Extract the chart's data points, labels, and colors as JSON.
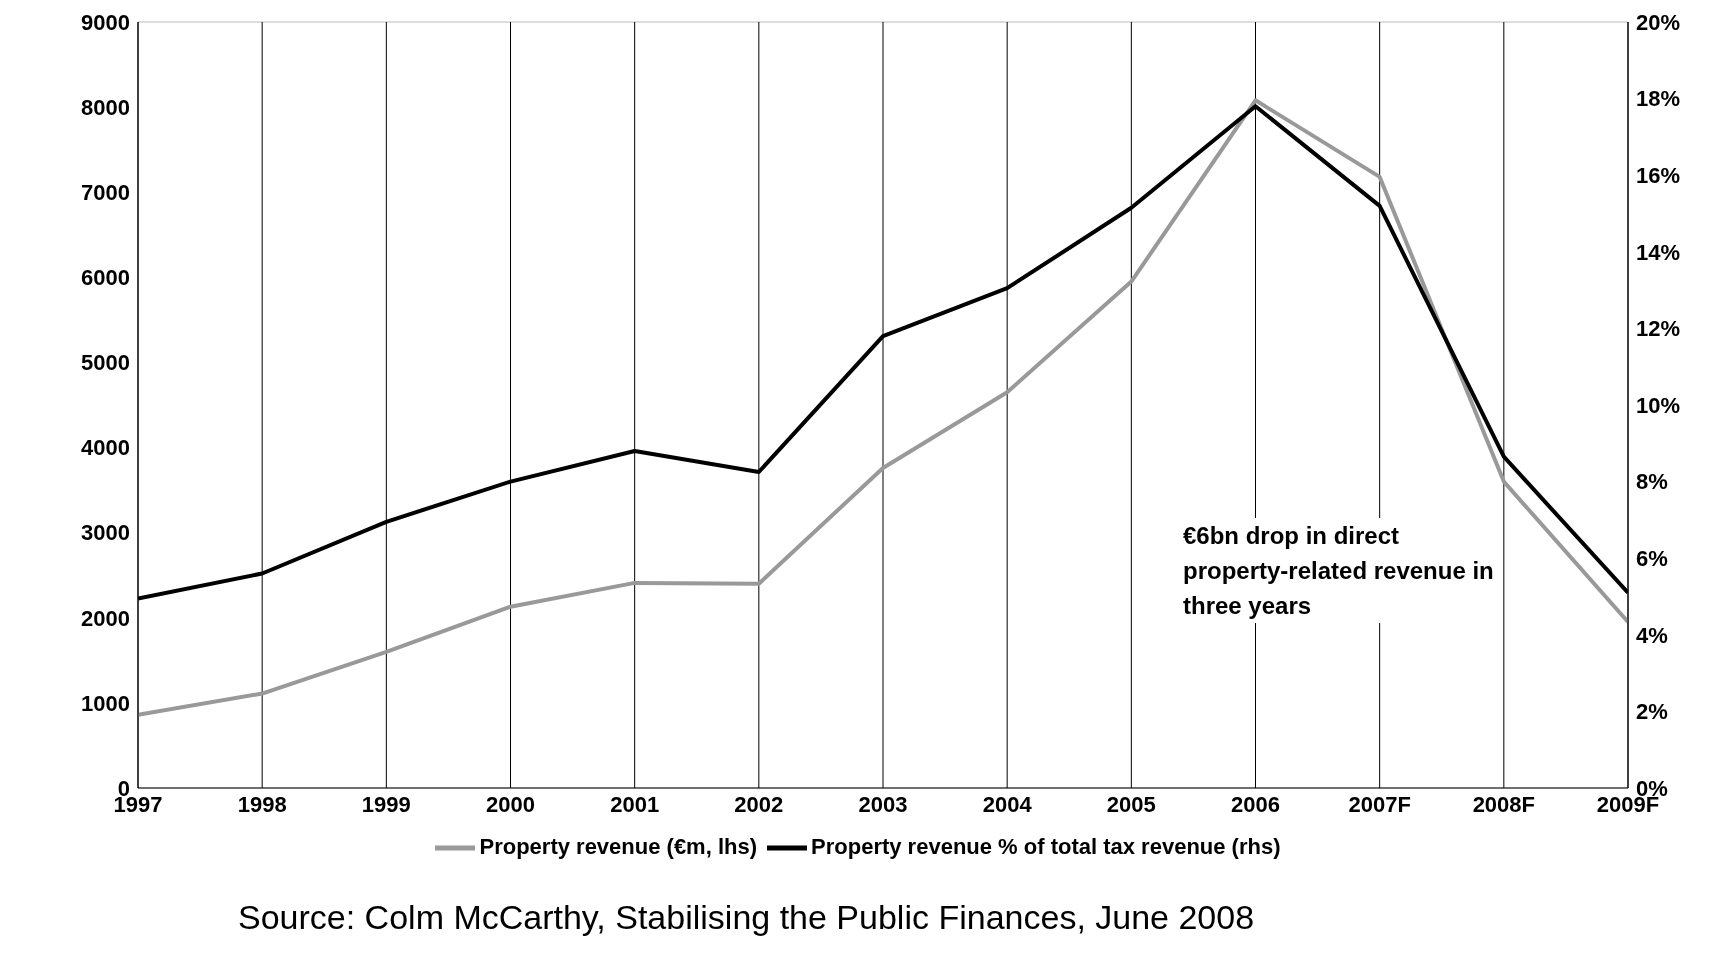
{
  "chart_data": {
    "type": "line",
    "categories": [
      "1997",
      "1998",
      "1999",
      "2000",
      "2001",
      "2002",
      "2003",
      "2004",
      "2005",
      "2006",
      "2007F",
      "2008F",
      "2009F"
    ],
    "series": [
      {
        "name": "Property revenue (€m, lhs)",
        "color": "#999999",
        "values": [
          860,
          1110,
          1600,
          2130,
          2410,
          2400,
          3760,
          4650,
          5950,
          8080,
          7180,
          3600,
          1950
        ]
      },
      {
        "name": "Property revenue % of total tax revenue (rhs)",
        "color": "#000000",
        "axis": "y2",
        "values": [
          4.95,
          5.6,
          6.95,
          8.0,
          8.8,
          8.25,
          11.8,
          13.05,
          15.15,
          17.8,
          15.2,
          8.65,
          5.1
        ]
      }
    ],
    "ylim": [
      0,
      9000
    ],
    "yticks": [
      0,
      1000,
      2000,
      3000,
      4000,
      5000,
      6000,
      7000,
      8000,
      9000
    ],
    "y2lim": [
      0,
      20
    ],
    "y2ticks": [
      {
        "value": 0,
        "label": "0%"
      },
      {
        "value": 2,
        "label": "2%"
      },
      {
        "value": 4,
        "label": "4%"
      },
      {
        "value": 6,
        "label": "6%"
      },
      {
        "value": 8,
        "label": "8%"
      },
      {
        "value": 10,
        "label": "10%"
      },
      {
        "value": 12,
        "label": "12%"
      },
      {
        "value": 14,
        "label": "14%"
      },
      {
        "value": 16,
        "label": "16%"
      },
      {
        "value": 18,
        "label": "18%"
      },
      {
        "value": 20,
        "label": "20%"
      }
    ],
    "grid": true,
    "legend": "bottom",
    "marker": "none",
    "line_style": "solid",
    "annotations": [
      "€6bn drop in direct property-related revenue in three years",
      "Source: Colm McCarthy, Stabilising the Public Finances, June 2008"
    ]
  }
}
